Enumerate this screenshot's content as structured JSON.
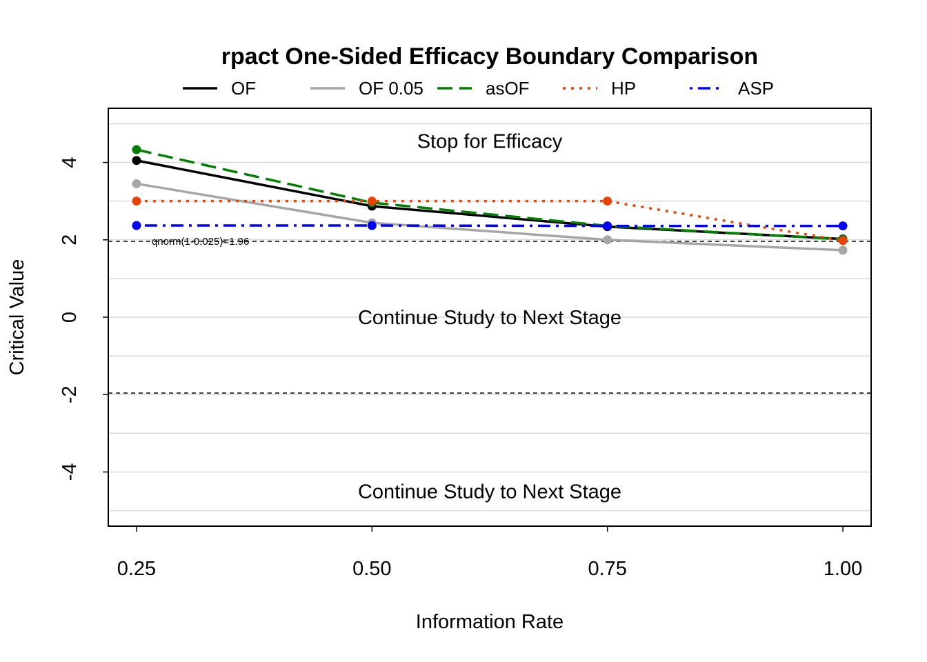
{
  "chart_data": {
    "type": "line",
    "title": "rpact One-Sided Efficacy Boundary Comparison",
    "xlabel": "Information Rate",
    "ylabel": "Critical Value",
    "x": [
      0.25,
      0.5,
      0.75,
      1.0
    ],
    "x_ticks": [
      "0.25",
      "0.50",
      "0.75",
      "1.00"
    ],
    "y_ticks": [
      -4,
      -2,
      0,
      2,
      4
    ],
    "y_tick_labels": [
      "-4",
      "-2",
      "0",
      "2",
      "4"
    ],
    "xlim": [
      0.22,
      1.03
    ],
    "ylim": [
      -5.4,
      5.4
    ],
    "grid": "horizontal",
    "legend_position": "top",
    "series": [
      {
        "name": "OF",
        "color": "#000000",
        "dash": "solid",
        "values": [
          4.05,
          2.87,
          2.34,
          2.02
        ]
      },
      {
        "name": "OF 0.05",
        "color": "#A6A6A6",
        "dash": "solid",
        "values": [
          3.45,
          2.44,
          2.0,
          1.73
        ]
      },
      {
        "name": "asOF",
        "color": "#008000",
        "dash": "longdash",
        "values": [
          4.33,
          2.96,
          2.36,
          2.01
        ]
      },
      {
        "name": "HP",
        "color": "#E8440A",
        "dash": "dotted",
        "values": [
          3.0,
          3.0,
          3.0,
          1.98
        ]
      },
      {
        "name": "ASP",
        "color": "#0000FF",
        "dash": "dotdash",
        "values": [
          2.37,
          2.37,
          2.36,
          2.36
        ]
      }
    ],
    "reference_lines": [
      {
        "y": 1.96,
        "label": "qnorm(1-0.025)=1.96"
      },
      {
        "y": -1.96,
        "label": ""
      }
    ],
    "annotations": [
      {
        "text": "Stop for Efficacy",
        "x": 0.625,
        "y": 4.55
      },
      {
        "text": "Continue Study to Next Stage",
        "x": 0.625,
        "y": 0.0
      },
      {
        "text": "Continue Study to Next Stage",
        "x": 0.625,
        "y": -4.5
      }
    ]
  }
}
